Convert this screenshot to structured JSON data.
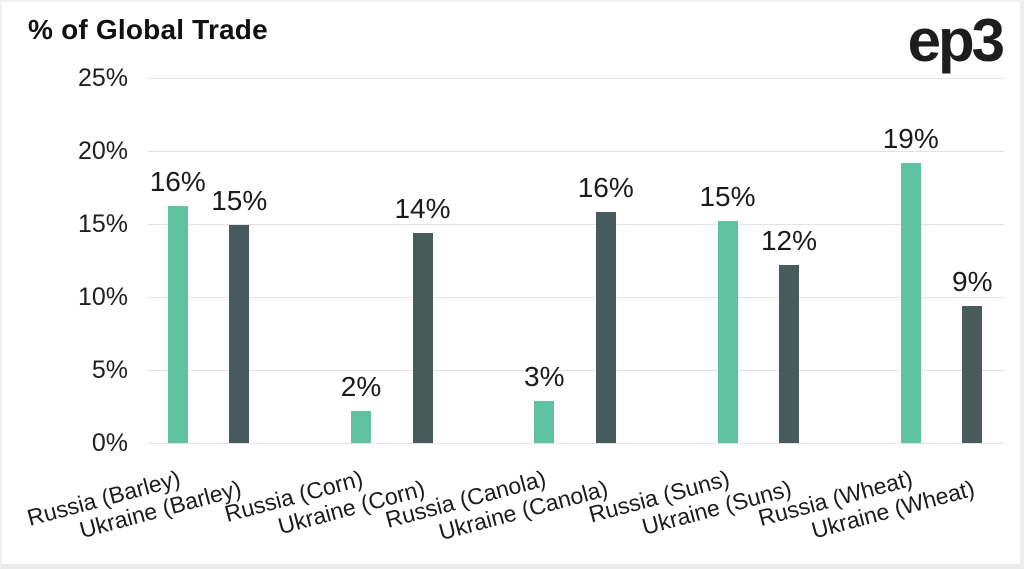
{
  "header": {
    "title": "% of Global Trade",
    "logo_text": "ep3"
  },
  "chart_data": {
    "type": "bar",
    "title": "% of Global Trade",
    "categories": [
      "Russia (Barley)",
      "Ukraine (Barley)",
      "Russia (Corn)",
      "Ukraine (Corn)",
      "Russia (Canola)",
      "Ukraine (Canola)",
      "Russia (Suns)",
      "Ukraine (Suns)",
      "Russia (Wheat)",
      "Ukraine (Wheat)"
    ],
    "values": [
      16,
      15,
      2,
      14,
      3,
      16,
      15,
      12,
      19,
      9
    ],
    "bars": [
      {
        "label": "Russia (Barley)",
        "value": 16,
        "display": "16%",
        "height_pct": 16.2,
        "series": "russia"
      },
      {
        "label": "Ukraine (Barley)",
        "value": 15,
        "display": "15%",
        "height_pct": 14.9,
        "series": "ukraine"
      },
      {
        "label": "Russia (Corn)",
        "value": 2,
        "display": "2%",
        "height_pct": 2.2,
        "series": "russia"
      },
      {
        "label": "Ukraine (Corn)",
        "value": 14,
        "display": "14%",
        "height_pct": 14.4,
        "series": "ukraine"
      },
      {
        "label": "Russia (Canola)",
        "value": 3,
        "display": "3%",
        "height_pct": 2.9,
        "series": "russia"
      },
      {
        "label": "Ukraine (Canola)",
        "value": 16,
        "display": "16%",
        "height_pct": 15.8,
        "series": "ukraine"
      },
      {
        "label": "Russia (Suns)",
        "value": 15,
        "display": "15%",
        "height_pct": 15.2,
        "series": "russia"
      },
      {
        "label": "Ukraine (Suns)",
        "value": 12,
        "display": "12%",
        "height_pct": 12.2,
        "series": "ukraine"
      },
      {
        "label": "Russia (Wheat)",
        "value": 19,
        "display": "19%",
        "height_pct": 19.2,
        "series": "russia"
      },
      {
        "label": "Ukraine (Wheat)",
        "value": 9,
        "display": "9%",
        "height_pct": 9.4,
        "series": "ukraine"
      }
    ],
    "series": [
      {
        "name": "Russia",
        "key": "russia",
        "color": "#5fc3a1"
      },
      {
        "name": "Ukraine",
        "key": "ukraine",
        "color": "#475a5c"
      }
    ],
    "colors": {
      "russia": "#5fc3a1",
      "ukraine": "#475a5c"
    },
    "y_ticks": [
      "0%",
      "5%",
      "10%",
      "15%",
      "20%",
      "25%"
    ],
    "ylim": [
      0,
      25
    ],
    "y_tick_step": 5,
    "grid": true,
    "legend": "none",
    "xlabel": "",
    "ylabel": ""
  }
}
